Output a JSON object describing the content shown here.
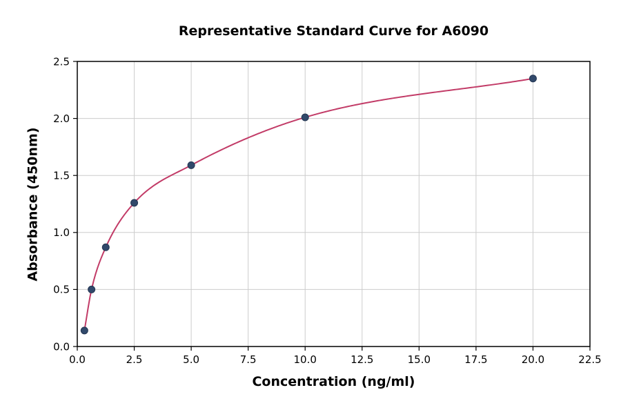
{
  "chart_data": {
    "type": "scatter",
    "title": "Representative Standard Curve for A6090",
    "xlabel": "Concentration (ng/ml)",
    "ylabel": "Absorbance (450nm)",
    "points": [
      {
        "x": 0.313,
        "y": 0.14
      },
      {
        "x": 0.625,
        "y": 0.5
      },
      {
        "x": 1.25,
        "y": 0.87
      },
      {
        "x": 2.5,
        "y": 1.26
      },
      {
        "x": 5,
        "y": 1.59
      },
      {
        "x": 10,
        "y": 2.01
      },
      {
        "x": 20,
        "y": 2.35
      }
    ],
    "fit": "smooth saturating curve through all points",
    "xlim": [
      0,
      22.5
    ],
    "ylim": [
      0,
      2.5
    ],
    "xticks": [
      "0.0",
      "2.5",
      "5.0",
      "7.5",
      "10.0",
      "12.5",
      "15.0",
      "17.5",
      "20.0",
      "22.5"
    ],
    "yticks": [
      "0.0",
      "0.5",
      "1.0",
      "1.5",
      "2.0",
      "2.5"
    ],
    "grid": true,
    "legend": "none",
    "colors": {
      "curve": "#c23b67",
      "marker": "#31496b",
      "marker_edge": "#243652",
      "grid": "#cccccc",
      "frame": "#000000",
      "background": "#ffffff"
    }
  }
}
